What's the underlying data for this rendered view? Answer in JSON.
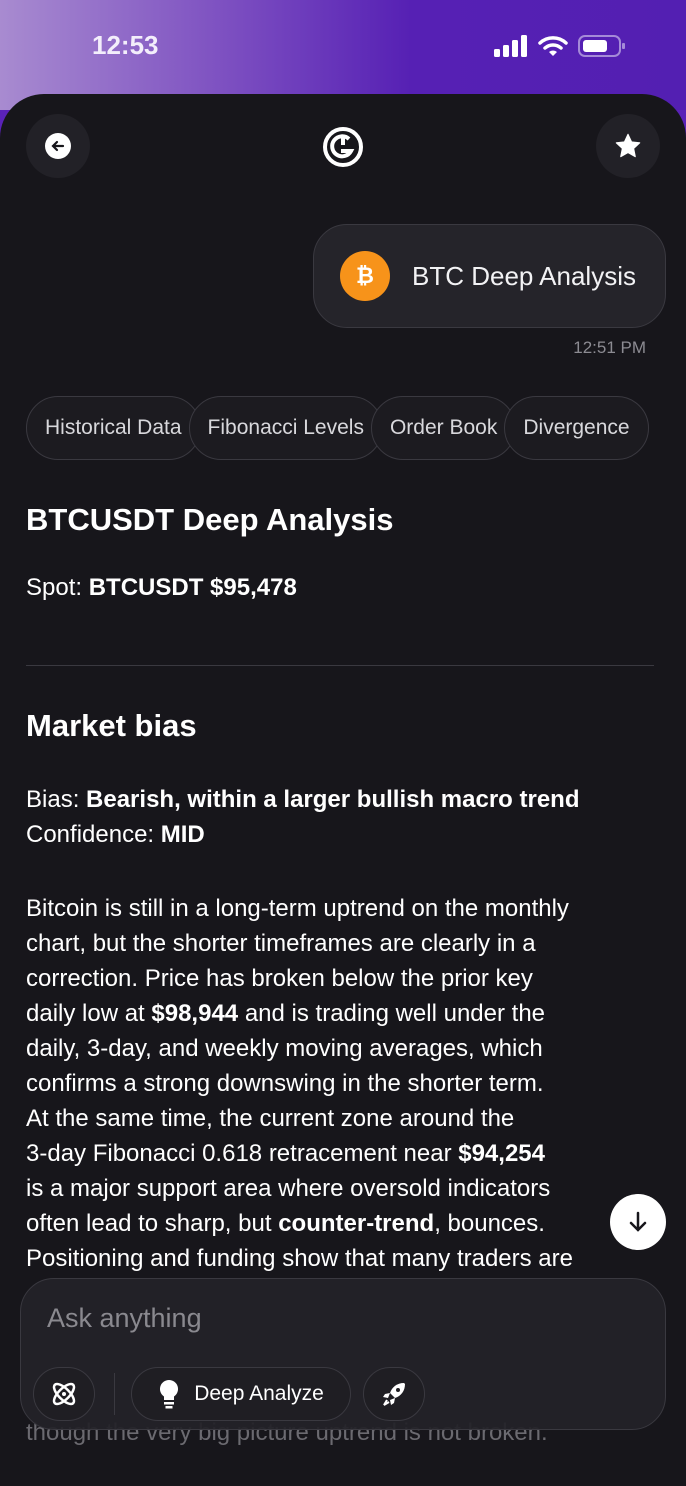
{
  "status_bar": {
    "time": "12:53",
    "icons": [
      "signal-icon",
      "wifi-icon",
      "battery-icon"
    ]
  },
  "header": {
    "back_icon": "arrow-left-icon",
    "logo_icon": "app-logo",
    "favorite_icon": "star-icon"
  },
  "user_message": {
    "icon": "bitcoin-icon",
    "text": "BTC Deep Analysis",
    "timestamp": "12:51 PM"
  },
  "chips": [
    "Historical Data",
    "Fibonacci Levels",
    "Order Book",
    "Divergence"
  ],
  "response": {
    "title": "BTCUSDT Deep Analysis",
    "spot_label": "Spot: ",
    "spot_value": "BTCUSDT $95,478",
    "section_title": "Market bias",
    "bias_label": "Bias: ",
    "bias_value": "Bearish, within a larger bullish macro trend",
    "confidence_label": "Confidence: ",
    "confidence_value": "MID",
    "paragraph_lines": [
      [
        {
          "t": "Bitcoin is still in a long-term uptrend on the monthly"
        }
      ],
      [
        {
          "t": "chart, but the shorter timeframes are clearly in a"
        }
      ],
      [
        {
          "t": "correction. Price has broken below the prior key"
        }
      ],
      [
        {
          "t": "daily low at "
        },
        {
          "t": "$98,944",
          "b": true
        },
        {
          "t": " and is trading well under the"
        }
      ],
      [
        {
          "t": "daily, 3-day, and weekly moving averages, which"
        }
      ],
      [
        {
          "t": "confirms a strong downswing in the shorter term."
        }
      ],
      [
        {
          "t": "At the same time, the current zone around the"
        }
      ],
      [
        {
          "t": "3-day Fibonacci 0.618 retracement near "
        },
        {
          "t": "$94,254",
          "b": true
        }
      ],
      [
        {
          "t": "is a major support area where oversold indicators"
        }
      ],
      [
        {
          "t": "often lead to sharp, but "
        },
        {
          "t": "counter-trend",
          "b": true
        },
        {
          "t": ", bounces."
        }
      ],
      [
        {
          "t": "Positioning and funding show that many traders are"
        }
      ]
    ],
    "last_visible_line": "though the very big picture uptrend is not broken."
  },
  "composer": {
    "placeholder": "Ask anything",
    "deep_analyze_label": "Deep Analyze",
    "icons": [
      "atom-icon",
      "lightbulb-icon",
      "rocket-icon"
    ]
  },
  "colors": {
    "accent": "#5620b4",
    "bitcoin": "#f7931a",
    "background": "#17161b"
  }
}
